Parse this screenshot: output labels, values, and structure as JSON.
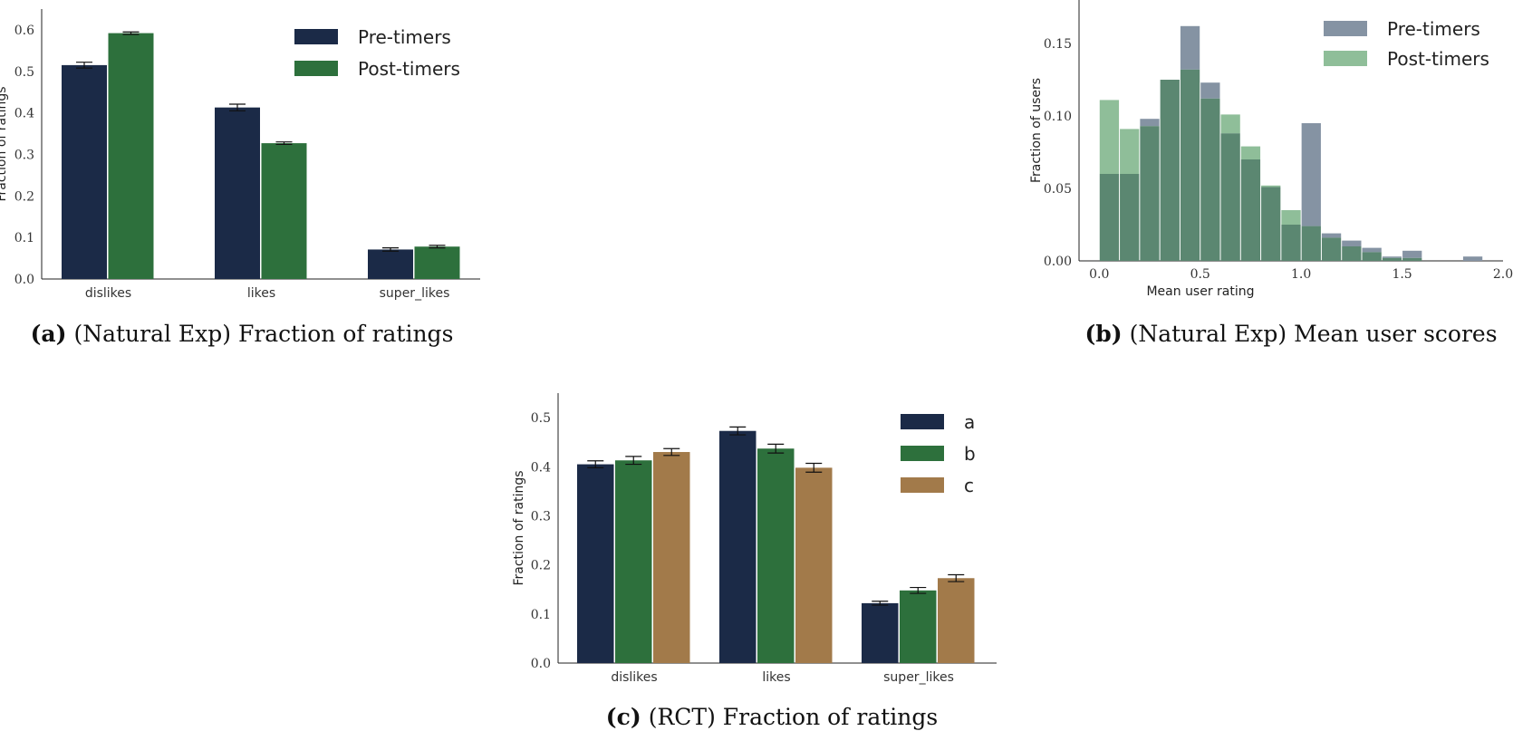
{
  "chart_data": [
    {
      "type": "bar",
      "id": "a",
      "caption_label": "(a)",
      "caption_text": "(Natural Exp) Fraction of ratings",
      "categories": [
        "dislikes",
        "likes",
        "super_likes"
      ],
      "series": [
        {
          "name": "Pre-timers",
          "color": "#1b2a47",
          "values": [
            0.515,
            0.413,
            0.071
          ],
          "errors": [
            0.007,
            0.008,
            0.004
          ]
        },
        {
          "name": "Post-timers",
          "color": "#2d703c",
          "values": [
            0.592,
            0.327,
            0.078
          ],
          "errors": [
            0.003,
            0.003,
            0.003
          ]
        }
      ],
      "ylabel": "Fraction of ratings",
      "xlabel": "",
      "ylim": [
        0,
        0.65
      ],
      "yticks": [
        "0.0",
        "0.1",
        "0.2",
        "0.3",
        "0.4",
        "0.5",
        "0.6"
      ],
      "legend": "top-right"
    },
    {
      "type": "histogram",
      "id": "b",
      "caption_label": "(b)",
      "caption_text": "(Natural Exp) Mean user scores",
      "bin_start": 0.0,
      "bin_width": 0.1,
      "series": [
        {
          "name": "Pre-timers",
          "color": "#8593a3",
          "values": [
            0.06,
            0.06,
            0.098,
            0.125,
            0.162,
            0.123,
            0.088,
            0.07,
            0.051,
            0.025,
            0.095,
            0.019,
            0.014,
            0.009,
            0.003,
            0.007,
            0.0,
            0.0,
            0.003
          ]
        },
        {
          "name": "Post-timers",
          "color": "#8fbe99",
          "values": [
            0.111,
            0.091,
            0.093,
            0.125,
            0.132,
            0.112,
            0.101,
            0.079,
            0.052,
            0.035,
            0.024,
            0.016,
            0.01,
            0.006,
            0.002,
            0.002,
            0.0,
            0.0,
            0.0
          ]
        }
      ],
      "overlap_color": "#5b8771",
      "ylabel": "Fraction of users",
      "xlabel": "Mean user rating",
      "xlim": [
        -0.1,
        2.0
      ],
      "ylim": [
        0,
        0.18
      ],
      "xticks": [
        "0.0",
        "0.5",
        "1.0",
        "1.5",
        "2.0"
      ],
      "yticks": [
        "0.00",
        "0.05",
        "0.10",
        "0.15"
      ],
      "legend": "top-right"
    },
    {
      "type": "bar",
      "id": "c",
      "caption_label": "(c)",
      "caption_text": "(RCT) Fraction of ratings",
      "categories": [
        "dislikes",
        "likes",
        "super_likes"
      ],
      "series": [
        {
          "name": "a",
          "color": "#1b2a47",
          "values": [
            0.405,
            0.473,
            0.122
          ],
          "errors": [
            0.007,
            0.008,
            0.004
          ]
        },
        {
          "name": "b",
          "color": "#2d703c",
          "values": [
            0.413,
            0.437,
            0.148
          ],
          "errors": [
            0.008,
            0.009,
            0.006
          ]
        },
        {
          "name": "c",
          "color": "#a27a4a",
          "values": [
            0.43,
            0.398,
            0.173
          ],
          "errors": [
            0.007,
            0.009,
            0.007
          ]
        }
      ],
      "ylabel": "Fraction of ratings",
      "xlabel": "",
      "ylim": [
        0,
        0.55
      ],
      "yticks": [
        "0.0",
        "0.1",
        "0.2",
        "0.3",
        "0.4",
        "0.5"
      ],
      "legend": "top-right"
    }
  ]
}
